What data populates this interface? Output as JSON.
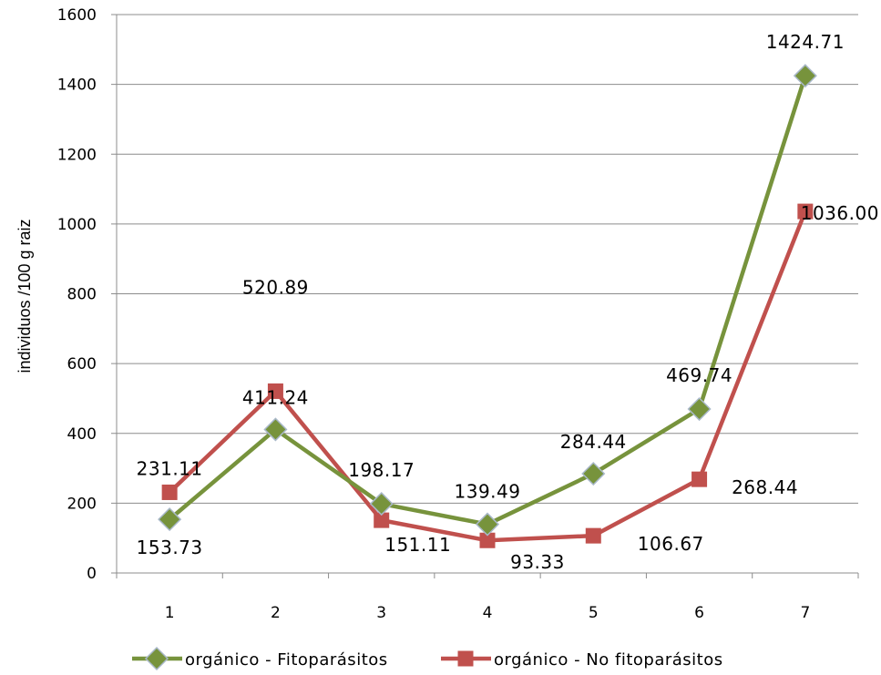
{
  "chart_data": {
    "type": "line",
    "title": "",
    "xlabel": "",
    "ylabel": "individuos /100 g raiz",
    "categories": [
      "1",
      "2",
      "3",
      "4",
      "5",
      "6",
      "7"
    ],
    "ylim": [
      0,
      1600
    ],
    "yticks": [
      "0",
      "200",
      "400",
      "600",
      "800",
      "1000",
      "1200",
      "1400",
      "1600"
    ],
    "grid": true,
    "legend_position": "bottom",
    "series": [
      {
        "name": "orgánico - Fitoparásitos",
        "values": [
          153.73,
          411.24,
          198.17,
          139.49,
          284.44,
          469.74,
          1424.71
        ],
        "labels": [
          "153.73",
          "411.24",
          "198.17",
          "139.49",
          "284.44",
          "469.74",
          "1424.71"
        ],
        "color": "#77933C",
        "marker_color": "#4F6228",
        "marker": "diamond"
      },
      {
        "name": "orgánico - No fitoparásitos",
        "values": [
          231.11,
          520.89,
          151.11,
          93.33,
          106.67,
          268.44,
          1036.0
        ],
        "labels": [
          "231.11",
          "520.89",
          "151.11",
          "93.33",
          "106.67",
          "268.44",
          "1036.00"
        ],
        "color": "#C0504D",
        "marker_color": "#C0504D",
        "marker": "square"
      }
    ]
  }
}
